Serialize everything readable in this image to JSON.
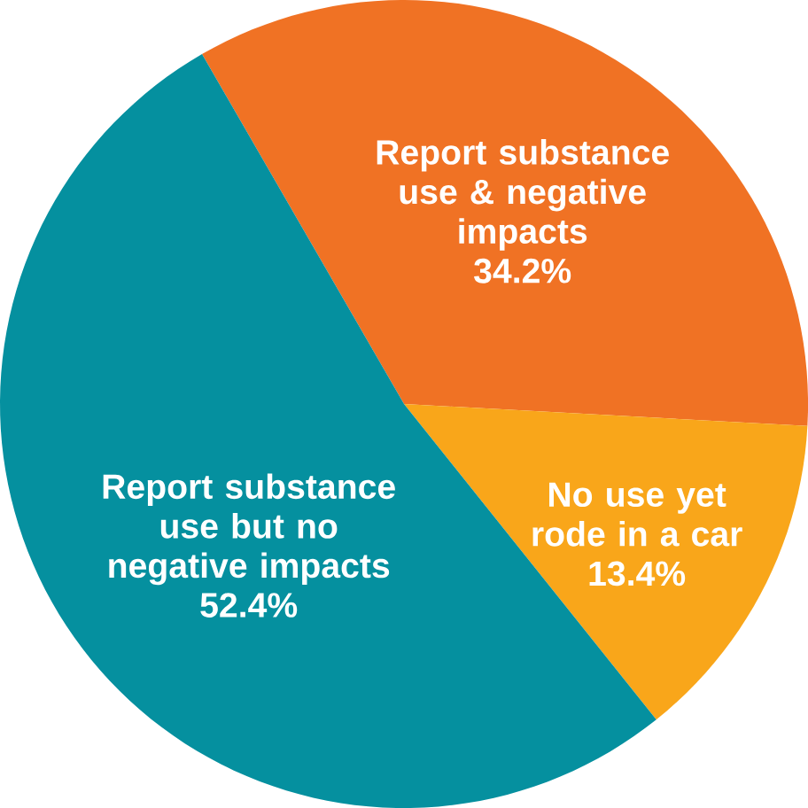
{
  "chart_data": {
    "type": "pie",
    "categories": [
      "Report substance use & negative impacts",
      "No use yet rode in a car",
      "Report substance use but no negative impacts"
    ],
    "values": [
      34.2,
      13.4,
      52.4
    ],
    "colors": [
      "#f07224",
      "#f9a61a",
      "#05909f"
    ],
    "value_labels": [
      "34.2%",
      "13.4%",
      "52.4%"
    ]
  }
}
